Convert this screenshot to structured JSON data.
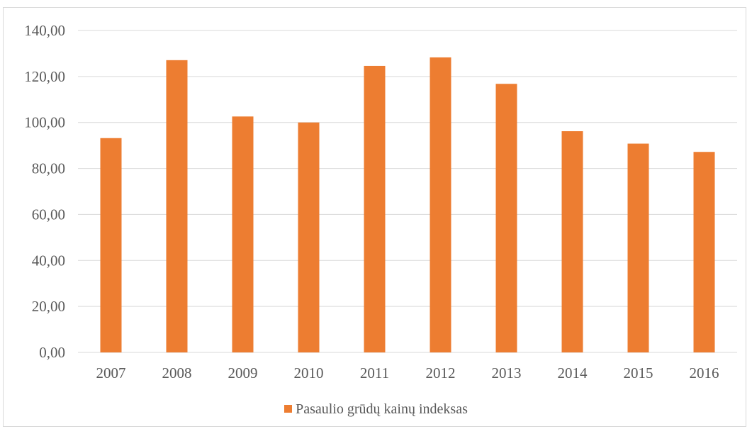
{
  "chart_data": {
    "type": "bar",
    "categories": [
      "2007",
      "2008",
      "2009",
      "2010",
      "2011",
      "2012",
      "2013",
      "2014",
      "2015",
      "2016"
    ],
    "series": [
      {
        "name": "Pasaulio  grūdų kainų indeksas",
        "values": [
          93.2,
          127.1,
          102.6,
          100.0,
          124.6,
          128.3,
          116.8,
          96.2,
          90.8,
          87.2
        ]
      }
    ],
    "y_ticks": [
      "0,00",
      "20,00",
      "40,00",
      "60,00",
      "80,00",
      "100,00",
      "120,00",
      "140,00"
    ],
    "ylim": [
      0,
      140
    ],
    "title": "",
    "xlabel": "",
    "ylabel": "",
    "grid": true,
    "legend_position": "bottom",
    "colors": {
      "bar": "#ED7D31",
      "grid": "#d9d9d9",
      "text": "#595959"
    }
  }
}
